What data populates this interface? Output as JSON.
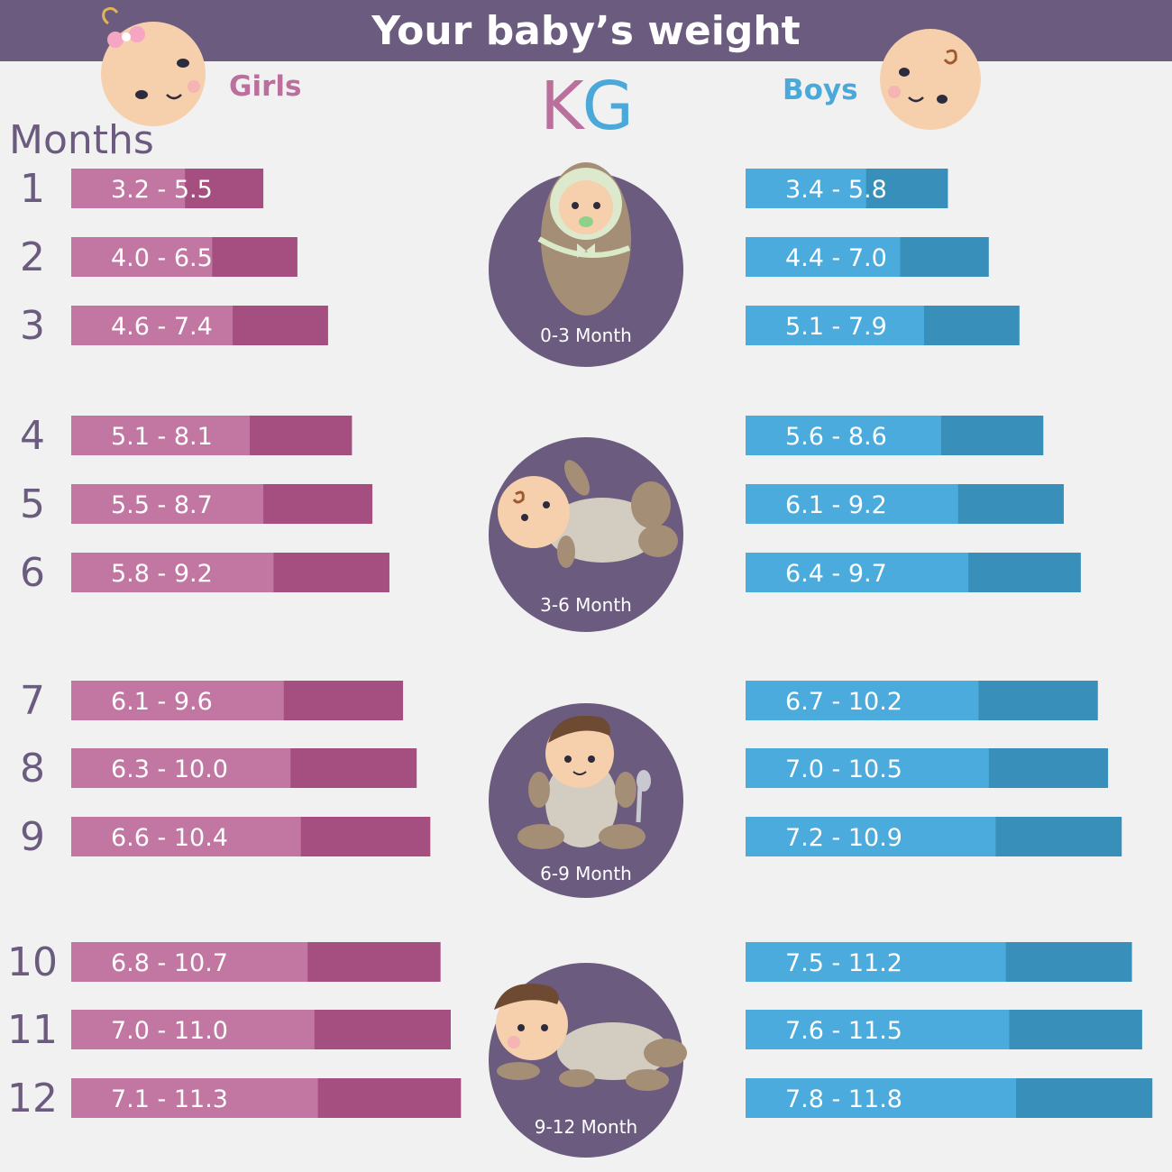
{
  "header": {
    "title": "Your baby’s weight"
  },
  "labels": {
    "girls": "Girls",
    "boys": "Boys",
    "unit_k": "K",
    "unit_g": "G",
    "months": "Months"
  },
  "colors": {
    "header": "#6b5b7e",
    "background": "#f1f1f2",
    "girls_light": "#c277a3",
    "girls_dark": "#a54e80",
    "boys_light": "#4aabdc",
    "boys_dark": "#3890ba",
    "stage_circle": "#6b5b7e",
    "text_purple": "#6b5b7e"
  },
  "stages": [
    {
      "label": "0-3 Month",
      "icon": "swaddled-baby-icon"
    },
    {
      "label": "3-6 Month",
      "icon": "lying-baby-icon"
    },
    {
      "label": "6-9 Month",
      "icon": "sitting-baby-icon"
    },
    {
      "label": "9-12 Month",
      "icon": "crawling-baby-icon"
    }
  ],
  "chart_data": {
    "type": "bar",
    "title": "Your baby’s weight",
    "unit": "KG",
    "xlabel": "Months",
    "categories": [
      "1",
      "2",
      "3",
      "4",
      "5",
      "6",
      "7",
      "8",
      "9",
      "10",
      "11",
      "12"
    ],
    "series": [
      {
        "name": "Girls",
        "low": [
          3.2,
          4.0,
          4.6,
          5.1,
          5.5,
          5.8,
          6.1,
          6.3,
          6.6,
          6.8,
          7.0,
          7.1
        ],
        "high": [
          5.5,
          6.5,
          7.4,
          8.1,
          8.7,
          9.2,
          9.6,
          10.0,
          10.4,
          10.7,
          11.0,
          11.3
        ],
        "labels": [
          "3.2 - 5.5",
          "4.0 - 6.5",
          "4.6 - 7.4",
          "5.1 - 8.1",
          "5.5 - 8.7",
          "5.8 - 9.2",
          "6.1 - 9.6",
          "6.3 - 10.0",
          "6.6 - 10.4",
          "6.8 - 10.7",
          "7.0 - 11.0",
          "7.1 - 11.3"
        ]
      },
      {
        "name": "Boys",
        "low": [
          3.4,
          4.4,
          5.1,
          5.6,
          6.1,
          6.4,
          6.7,
          7.0,
          7.2,
          7.5,
          7.6,
          7.8
        ],
        "high": [
          5.8,
          7.0,
          7.9,
          8.6,
          9.2,
          9.7,
          10.2,
          10.5,
          10.9,
          11.2,
          11.5,
          11.8
        ],
        "labels": [
          "3.4 - 5.8",
          "4.4 - 7.0",
          "5.1 - 7.9",
          "5.6 - 8.6",
          "6.1 - 9.2",
          "6.4 - 9.7",
          "6.7 - 10.2",
          "7.0 - 10.5",
          "7.2 - 10.9",
          "7.5 - 11.2",
          "7.6 - 11.5",
          "7.8 - 11.8"
        ]
      }
    ],
    "grid": false
  }
}
